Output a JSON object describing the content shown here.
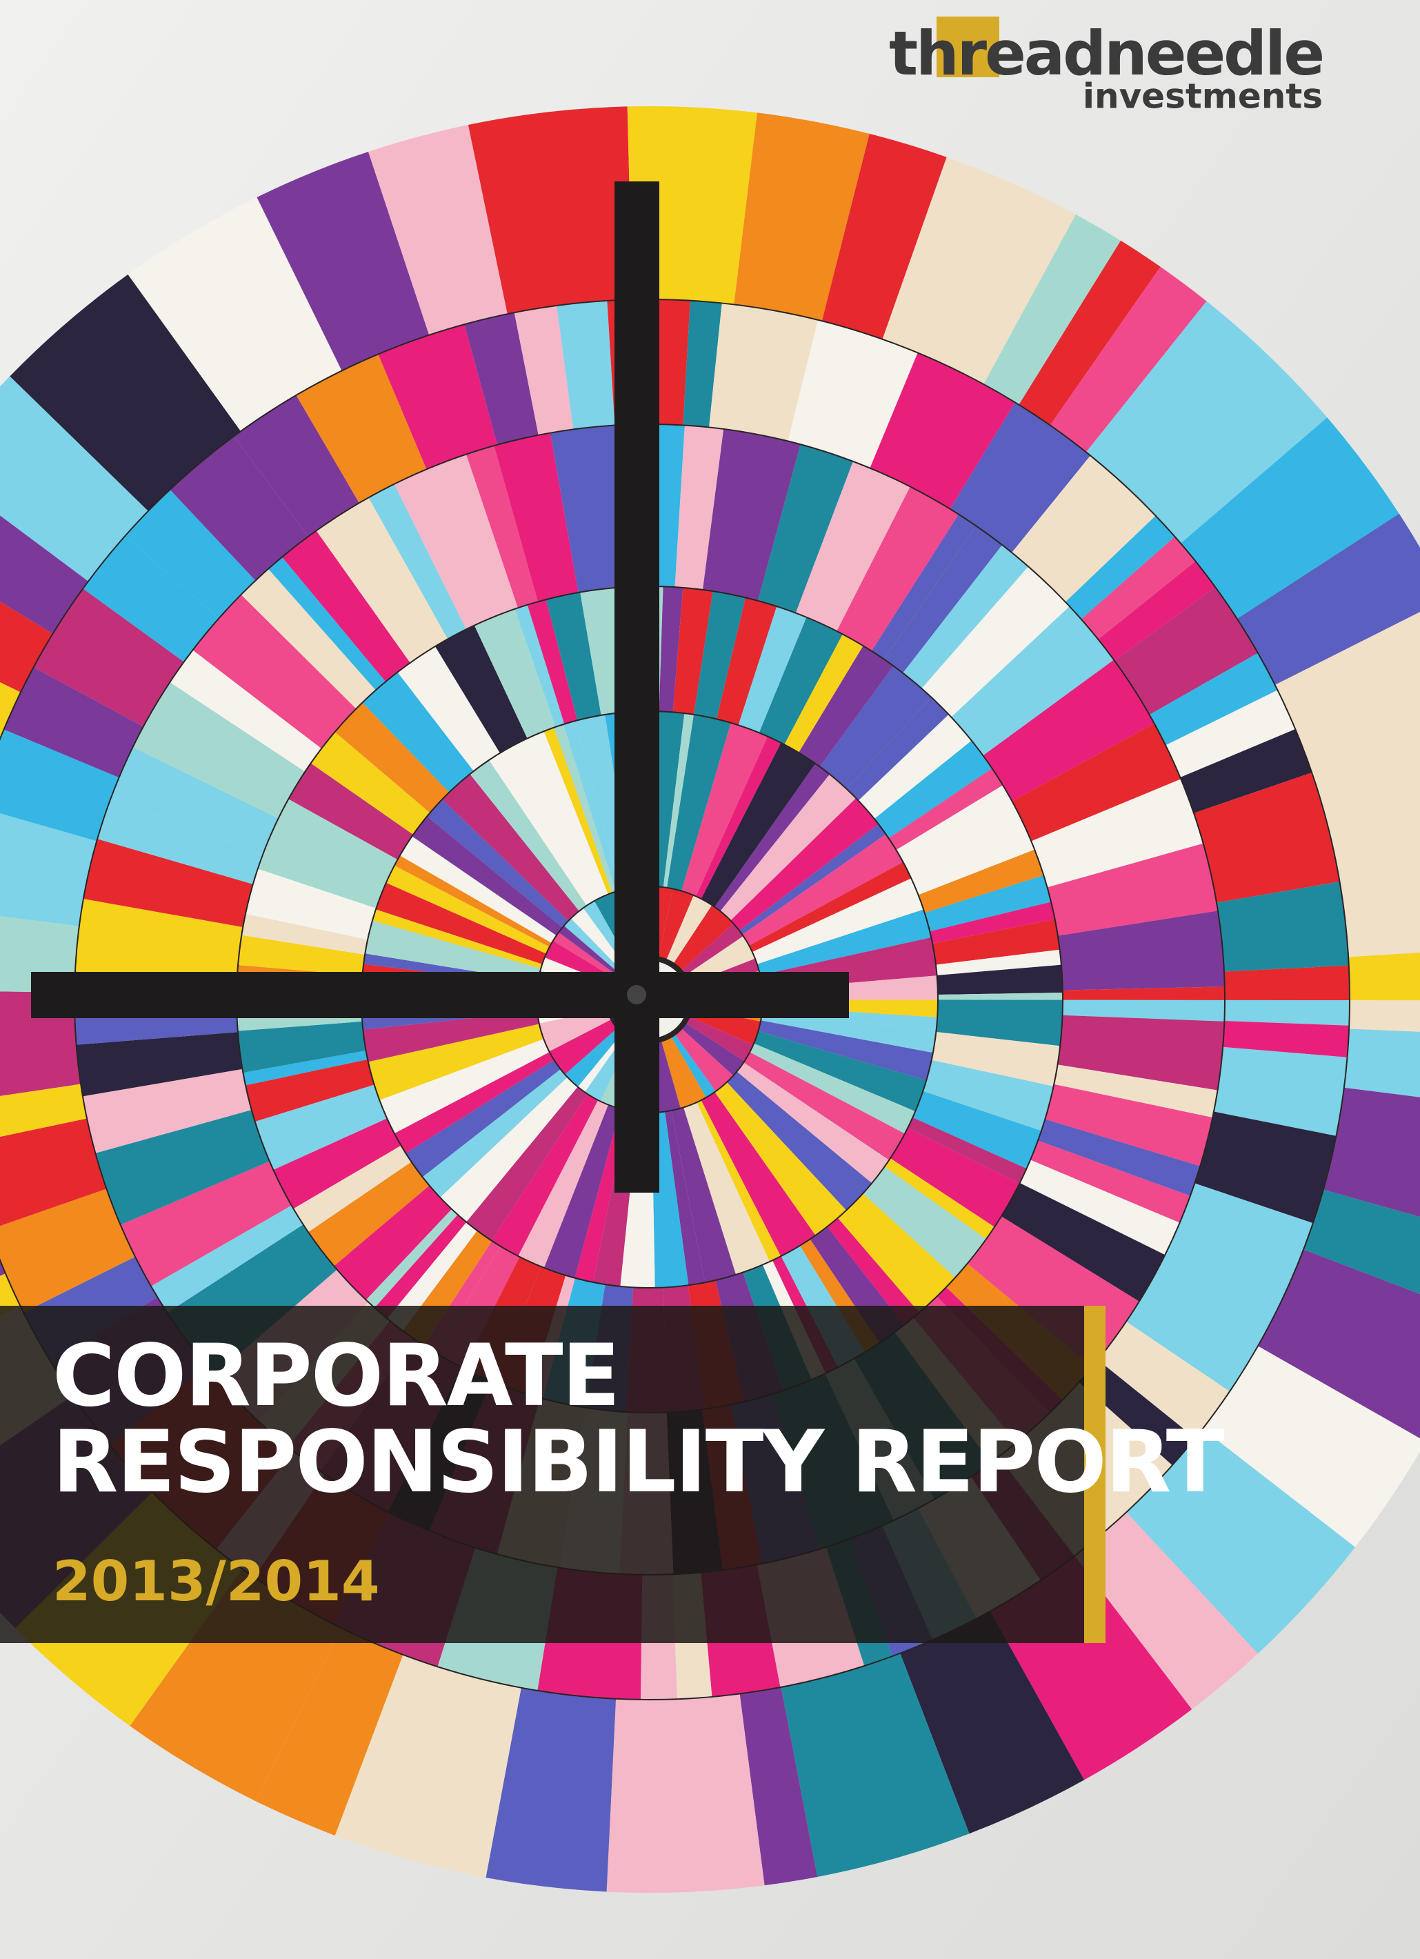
{
  "logo": {
    "name": "threadneedle",
    "subtitle": "investments"
  },
  "title": {
    "line1": "CORPORATE",
    "line2": "RESPONSIBILITY REPORT"
  },
  "year": "2013/2014"
}
